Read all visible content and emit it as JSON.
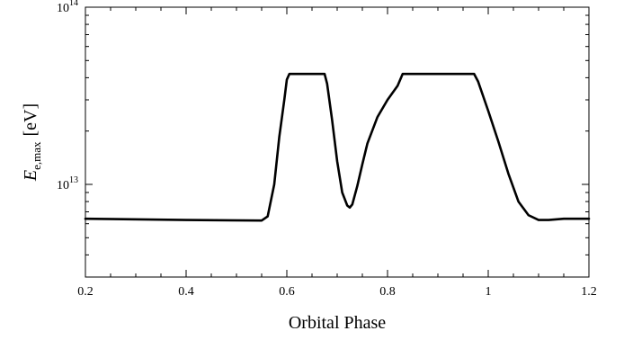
{
  "chart_data": {
    "type": "line",
    "title": "",
    "xlabel": "Orbital Phase",
    "ylabel": {
      "main": "E",
      "sub": "e,max",
      "unit": "[eV]"
    },
    "xlim": [
      0.2,
      1.2
    ],
    "ylim": [
      3000000000000.0,
      100000000000000.0
    ],
    "yscale": "log",
    "grid": false,
    "x_ticks": [
      {
        "value": 0.2,
        "label": "0.2"
      },
      {
        "value": 0.4,
        "label": "0.4"
      },
      {
        "value": 0.6,
        "label": "0.6"
      },
      {
        "value": 0.8,
        "label": "0.8"
      },
      {
        "value": 1.0,
        "label": "1"
      },
      {
        "value": 1.2,
        "label": "1.2"
      }
    ],
    "y_ticks": [
      {
        "value": 10000000000000.0,
        "base": "10",
        "exp": "13"
      },
      {
        "value": 100000000000000.0,
        "base": "10",
        "exp": "14"
      }
    ],
    "series": [
      {
        "color": "#000000",
        "x": [
          0.2,
          0.4,
          0.55,
          0.562,
          0.575,
          0.585,
          0.595,
          0.6,
          0.605,
          0.62,
          0.64,
          0.66,
          0.675,
          0.68,
          0.69,
          0.7,
          0.71,
          0.72,
          0.725,
          0.73,
          0.74,
          0.75,
          0.76,
          0.78,
          0.8,
          0.82,
          0.83,
          0.85,
          0.9,
          0.95,
          0.972,
          0.98,
          1.0,
          1.02,
          1.04,
          1.06,
          1.08,
          1.1,
          1.12,
          1.15,
          1.2
        ],
        "y": [
          6400000000000.0,
          6300000000000.0,
          6250000000000.0,
          6600000000000.0,
          10000000000000.0,
          18500000000000.0,
          30000000000000.0,
          39000000000000.0,
          42000000000000.0,
          42000000000000.0,
          42000000000000.0,
          42000000000000.0,
          42000000000000.0,
          37000000000000.0,
          23000000000000.0,
          13500000000000.0,
          9000000000000.0,
          7600000000000.0,
          7400000000000.0,
          7700000000000.0,
          9800000000000.0,
          13000000000000.0,
          17000000000000.0,
          24000000000000.0,
          30000000000000.0,
          36000000000000.0,
          42000000000000.0,
          42000000000000.0,
          42000000000000.0,
          42000000000000.0,
          42000000000000.0,
          38000000000000.0,
          26000000000000.0,
          17500000000000.0,
          11500000000000.0,
          8000000000000.0,
          6700000000000.0,
          6300000000000.0,
          6300000000000.0,
          6400000000000.0,
          6400000000000.0
        ]
      }
    ]
  }
}
